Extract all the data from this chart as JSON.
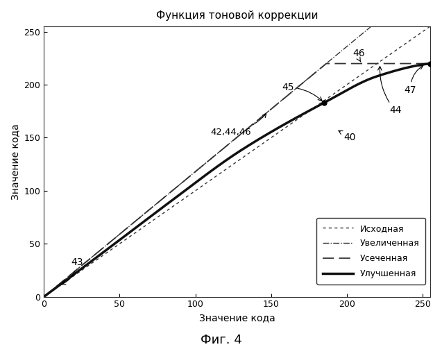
{
  "title": "Функция тоновой коррекции",
  "xlabel": "Значение кода",
  "ylabel": "Значение кода",
  "fig_caption": "Фиг. 4",
  "xlim": [
    0,
    255
  ],
  "ylim": [
    0,
    255
  ],
  "xticks": [
    0,
    50,
    100,
    150,
    200,
    250
  ],
  "yticks": [
    0,
    50,
    100,
    150,
    200,
    250
  ],
  "legend_labels": [
    "Исходная",
    "Увеличенная",
    "Усеченная",
    "Улучшенная"
  ],
  "bg_color": "#ffffff",
  "slope_increased": 1.18,
  "clip_max": 220,
  "enhanced_gamma": 0.88,
  "enhanced_scale": 245,
  "dot1_x": 185,
  "dot2_x": 255,
  "dot2_y": 220
}
